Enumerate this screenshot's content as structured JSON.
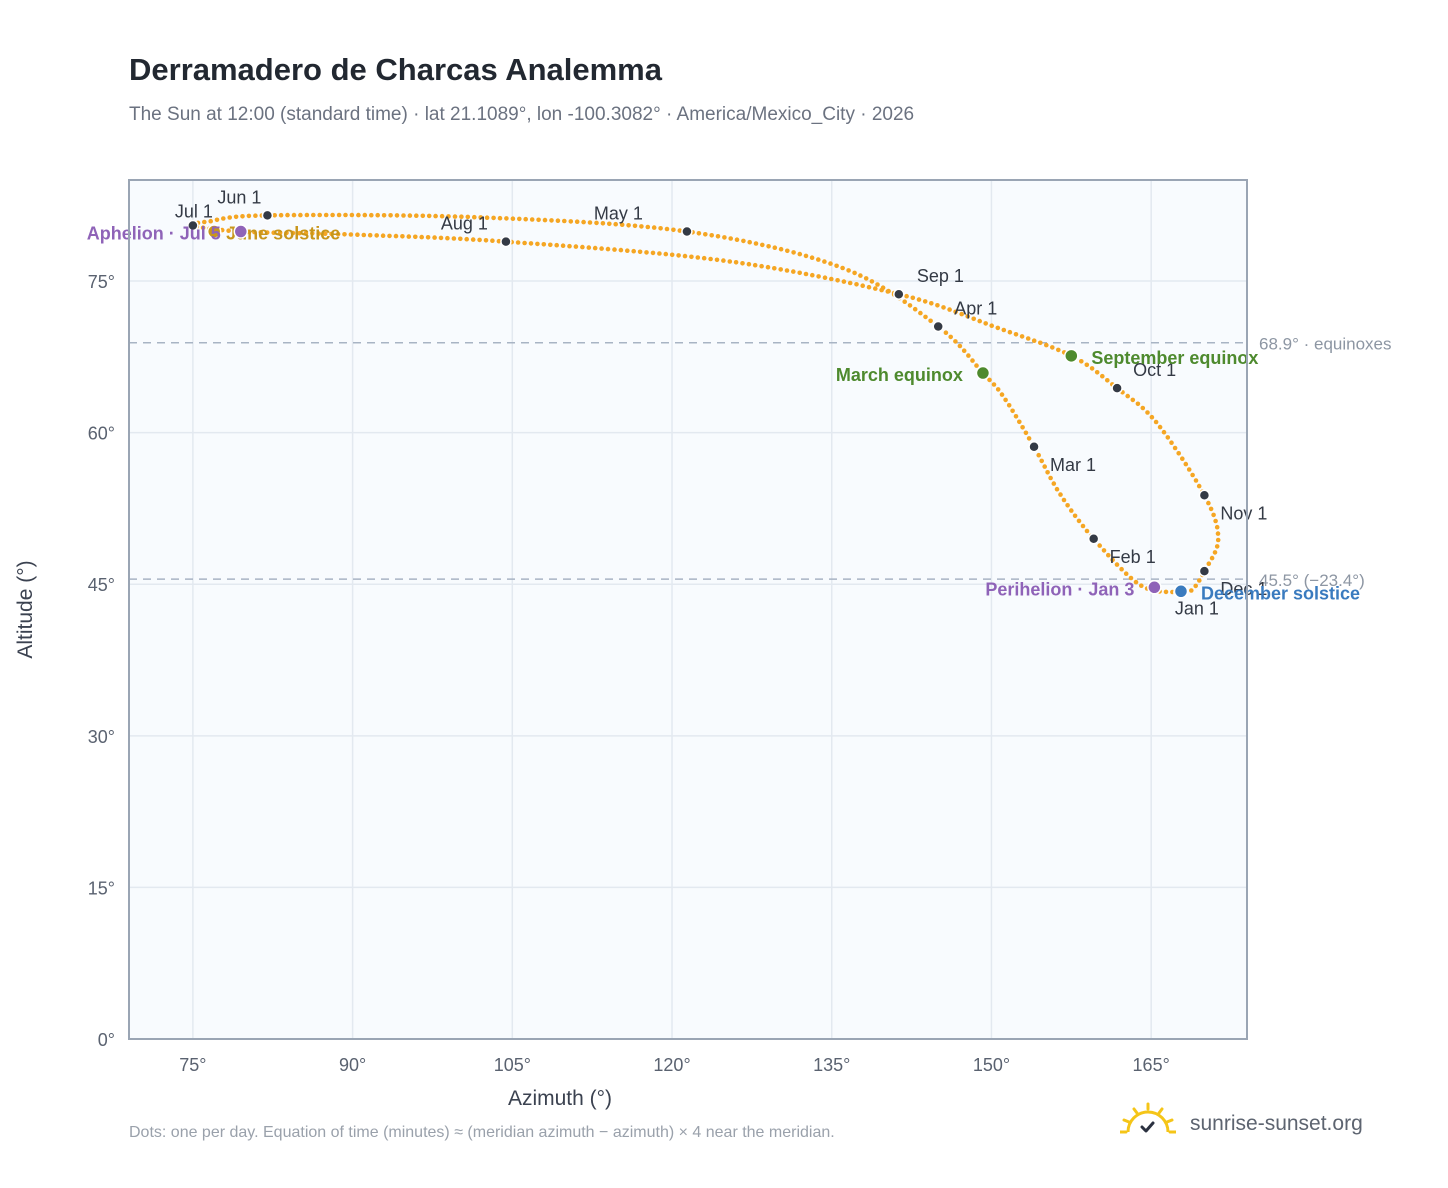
{
  "header": {
    "title": "Derramadero de Charcas Analemma",
    "subtitle": "The Sun at 12:00 (standard time) · lat 21.1089°, lon -100.3082° · America/Mexico_City · 2026"
  },
  "footer": {
    "note": "Dots: one per day. Equation of time (minutes) ≈ (meridian azimuth − azimuth) × 4 near the meridian.",
    "brand": "sunrise-sunset.org"
  },
  "colors": {
    "path": "#f5a623",
    "month_marker": "#343a45",
    "equinox": "#4e8a2e",
    "solstice_june": "#c8961c",
    "solstice_december": "#3a7bbf",
    "apsis": "#8f63b8",
    "refline": "#a8b4c4",
    "plot_bg": "#f8fbfe",
    "grid": "#e3e9f0"
  },
  "chart_data": {
    "type": "scatter",
    "title": "Derramadero de Charcas Analemma",
    "subtitle": "The Sun at 12:00 (standard time) · lat 21.1089°, lon -100.3082° · America/Mexico_City · 2026",
    "xlabel": "Azimuth (°)",
    "ylabel": "Altitude (°)",
    "xlim": [
      69,
      174
    ],
    "ylim": [
      0,
      85
    ],
    "grid": true,
    "x_ticks": [
      75,
      90,
      105,
      120,
      135,
      150,
      165
    ],
    "x_tick_labels": [
      "75°",
      "90°",
      "105°",
      "120°",
      "135°",
      "150°",
      "165°"
    ],
    "y_ticks": [
      0,
      15,
      30,
      45,
      60,
      75
    ],
    "y_tick_labels": [
      "0°",
      "15°",
      "30°",
      "45°",
      "60°",
      "75°"
    ],
    "reference_lines": [
      {
        "y": 68.9,
        "label": "68.9° · equinoxes"
      },
      {
        "y": 45.5,
        "label": "45.5° (−23.4°)"
      }
    ],
    "month_markers": [
      {
        "label": "Jan 1",
        "x": 167.6,
        "y": 44.2
      },
      {
        "label": "Feb 1",
        "x": 159.6,
        "y": 49.5
      },
      {
        "label": "Mar 1",
        "x": 154.0,
        "y": 58.6
      },
      {
        "label": "Apr 1",
        "x": 145.0,
        "y": 70.5
      },
      {
        "label": "May 1",
        "x": 121.4,
        "y": 79.9
      },
      {
        "label": "Jun 1",
        "x": 82.0,
        "y": 81.5
      },
      {
        "label": "Jul 1",
        "x": 75.0,
        "y": 80.5
      },
      {
        "label": "Aug 1",
        "x": 104.4,
        "y": 78.9
      },
      {
        "label": "Sep 1",
        "x": 141.3,
        "y": 73.7
      },
      {
        "label": "Oct 1",
        "x": 161.8,
        "y": 64.4
      },
      {
        "label": "Nov 1",
        "x": 170.0,
        "y": 53.8
      },
      {
        "label": "Dec 1",
        "x": 170.0,
        "y": 46.3
      }
    ],
    "events": [
      {
        "label": "March equinox",
        "x": 149.2,
        "y": 65.9,
        "kind": "equinox"
      },
      {
        "label": "September equinox",
        "x": 157.5,
        "y": 67.6,
        "kind": "equinox"
      },
      {
        "label": "June solstice",
        "x": 77.0,
        "y": 79.9,
        "kind": "solstice_june"
      },
      {
        "label": "December solstice",
        "x": 167.8,
        "y": 44.3,
        "kind": "solstice_december"
      },
      {
        "label": "Aphelion · Jul 5",
        "x": 79.5,
        "y": 79.9,
        "kind": "apsis"
      },
      {
        "label": "Perihelion · Jan 3",
        "x": 165.3,
        "y": 44.7,
        "kind": "apsis"
      }
    ],
    "path_anchors": [
      {
        "x": 167.6,
        "y": 44.2
      },
      {
        "x": 164.0,
        "y": 44.9
      },
      {
        "x": 159.6,
        "y": 49.5
      },
      {
        "x": 156.4,
        "y": 54.0
      },
      {
        "x": 154.0,
        "y": 58.6
      },
      {
        "x": 151.1,
        "y": 63.6
      },
      {
        "x": 149.2,
        "y": 65.9
      },
      {
        "x": 145.0,
        "y": 70.5
      },
      {
        "x": 136.0,
        "y": 76.3
      },
      {
        "x": 121.4,
        "y": 79.9
      },
      {
        "x": 102.0,
        "y": 81.3
      },
      {
        "x": 82.0,
        "y": 81.5
      },
      {
        "x": 76.5,
        "y": 80.9
      },
      {
        "x": 75.0,
        "y": 80.5
      },
      {
        "x": 79.5,
        "y": 79.9
      },
      {
        "x": 90.0,
        "y": 79.6
      },
      {
        "x": 104.4,
        "y": 78.9
      },
      {
        "x": 125.0,
        "y": 77.0
      },
      {
        "x": 141.3,
        "y": 73.7
      },
      {
        "x": 150.5,
        "y": 70.4
      },
      {
        "x": 157.5,
        "y": 67.6
      },
      {
        "x": 161.8,
        "y": 64.4
      },
      {
        "x": 165.5,
        "y": 61.0
      },
      {
        "x": 170.0,
        "y": 53.8
      },
      {
        "x": 171.3,
        "y": 49.5
      },
      {
        "x": 170.0,
        "y": 46.3
      },
      {
        "x": 168.8,
        "y": 44.4
      },
      {
        "x": 167.6,
        "y": 44.2
      }
    ]
  }
}
